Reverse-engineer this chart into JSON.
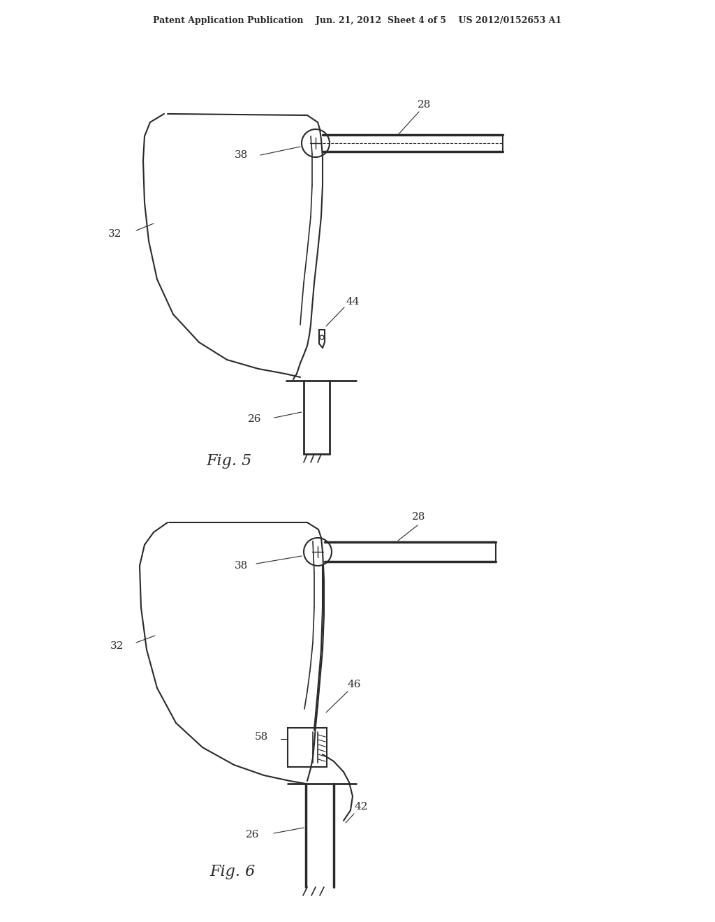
{
  "bg_color": "#ffffff",
  "header_text": "Patent Application Publication    Jun. 21, 2012  Sheet 4 of 5    US 2012/0152653 A1",
  "fig5_label": "Fig. 5",
  "fig6_label": "Fig. 6",
  "line_color": "#2a2a2a",
  "line_width": 1.5,
  "annotation_fontsize": 11,
  "header_fontsize": 9,
  "caption_fontsize": 16
}
